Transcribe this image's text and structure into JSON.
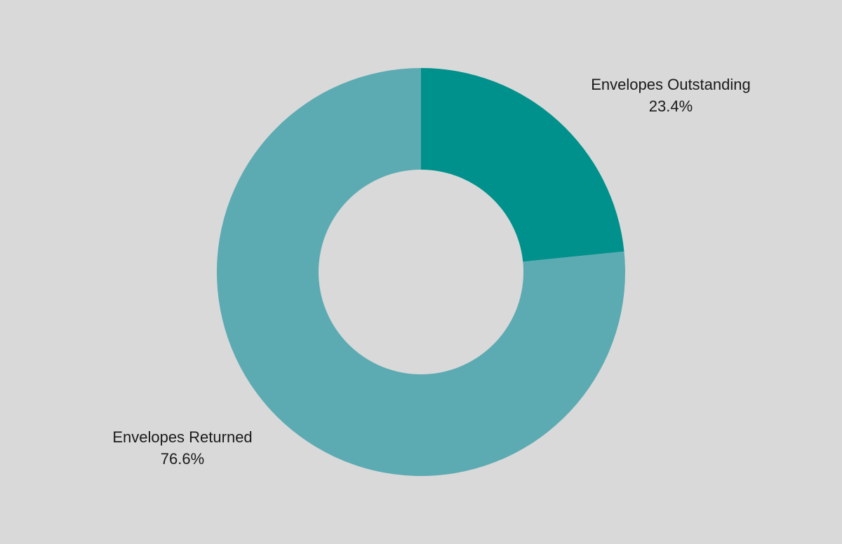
{
  "chart_data": {
    "type": "donut",
    "categories": [
      "Envelopes Outstanding",
      "Envelopes Returned"
    ],
    "values": [
      23.4,
      76.6
    ],
    "value_labels": [
      "23.4%",
      "76.6%"
    ],
    "colors": [
      "#00918c",
      "#5cabb2"
    ]
  }
}
